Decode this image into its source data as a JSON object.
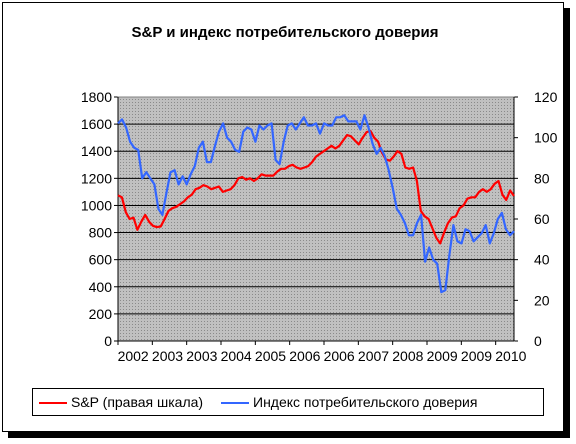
{
  "chart_data": {
    "type": "line",
    "title": "S&P и индекс потребительского доверия",
    "xlabel": "",
    "ylabel": "",
    "x_tick_labels": [
      "2002",
      "2003",
      "2003",
      "2004",
      "2005",
      "2006",
      "2006",
      "2007",
      "2008",
      "2009",
      "2009",
      "2010"
    ],
    "ylim_left": [
      0,
      1800
    ],
    "ylim_right": [
      0,
      120
    ],
    "y_ticks_left": [
      0,
      200,
      400,
      600,
      800,
      1000,
      1200,
      1400,
      1600,
      1800
    ],
    "y_ticks_right": [
      0,
      20,
      40,
      60,
      80,
      100,
      120
    ],
    "grid": true,
    "plot_background": "#c0c0c0",
    "legend_position": "bottom",
    "series": [
      {
        "name": "S&P (правая шкала)",
        "axis": "left",
        "color": "#ff0000",
        "values": [
          1075,
          1060,
          950,
          900,
          910,
          820,
          880,
          930,
          880,
          850,
          840,
          845,
          900,
          960,
          980,
          990,
          1010,
          1030,
          1060,
          1080,
          1120,
          1130,
          1150,
          1140,
          1120,
          1130,
          1140,
          1100,
          1110,
          1120,
          1150,
          1200,
          1210,
          1190,
          1200,
          1180,
          1200,
          1230,
          1220,
          1220,
          1220,
          1250,
          1270,
          1270,
          1290,
          1300,
          1280,
          1270,
          1280,
          1290,
          1320,
          1360,
          1380,
          1400,
          1420,
          1440,
          1420,
          1440,
          1480,
          1520,
          1510,
          1480,
          1450,
          1500,
          1540,
          1550,
          1500,
          1470,
          1390,
          1340,
          1330,
          1360,
          1400,
          1380,
          1280,
          1270,
          1280,
          1180,
          960,
          920,
          900,
          830,
          760,
          720,
          800,
          870,
          910,
          920,
          980,
          1000,
          1050,
          1060,
          1060,
          1100,
          1120,
          1100,
          1120,
          1160,
          1180,
          1080,
          1040,
          1110,
          1070
        ]
      },
      {
        "name": "Индекс потребительского доверия",
        "axis": "right",
        "color": "#3366ff",
        "values": [
          107,
          109,
          105,
          98,
          95,
          94,
          80,
          83,
          80,
          77,
          65,
          62,
          73,
          83,
          84,
          77,
          81,
          77,
          82,
          86,
          95,
          98,
          88,
          88,
          96,
          103,
          107,
          100,
          98,
          94,
          93,
          103,
          105,
          104,
          98,
          106,
          104,
          106,
          107,
          89,
          87,
          98,
          106,
          107,
          104,
          107,
          110,
          106,
          106,
          107,
          102,
          107,
          106,
          106,
          110,
          110,
          111,
          108,
          108,
          108,
          104,
          111,
          105,
          97,
          92,
          95,
          91,
          84,
          75,
          65,
          62,
          58,
          52,
          52,
          58,
          62,
          39,
          46,
          40,
          38,
          24,
          25,
          42,
          57,
          49,
          48,
          55,
          54,
          49,
          51,
          53,
          57,
          48,
          53,
          60,
          63,
          55,
          52,
          54
        ]
      }
    ]
  }
}
